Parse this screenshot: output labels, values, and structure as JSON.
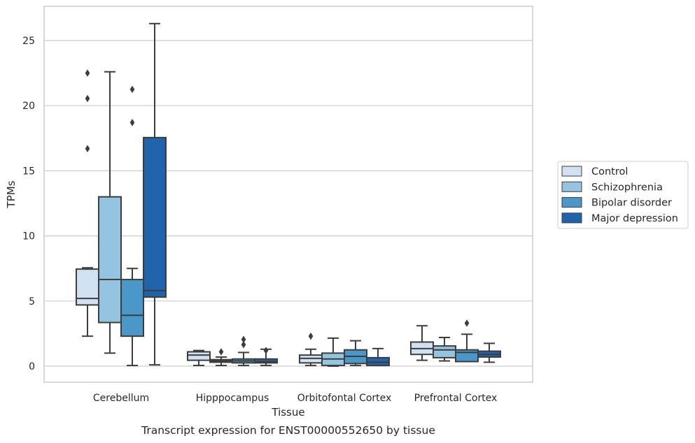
{
  "chart_data": {
    "type": "box",
    "title": "",
    "caption": "Transcript expression for ENST00000552650 by tissue",
    "xlabel": "Tissue",
    "ylabel": "TPMs",
    "ylim": [
      -1.2,
      27.2
    ],
    "yticks": [
      0,
      5,
      10,
      15,
      20,
      25
    ],
    "grid": "horizontal",
    "legend_position": "right",
    "categories": [
      "Cerebellum",
      "Hipppocampus",
      "Orbitofontal Cortex",
      "Prefrontal Cortex"
    ],
    "series": [
      {
        "name": "Control",
        "color": "#d0e1f2",
        "boxes": [
          {
            "whislo": 2.3,
            "q1": 4.7,
            "med": 5.2,
            "q3": 7.45,
            "whishi": 7.55,
            "fliers": [
              16.7,
              20.55,
              22.5
            ]
          },
          {
            "whislo": 0.05,
            "q1": 0.45,
            "med": 0.85,
            "q3": 1.1,
            "whishi": 1.2,
            "fliers": []
          },
          {
            "whislo": 0.05,
            "q1": 0.25,
            "med": 0.6,
            "q3": 0.85,
            "whishi": 1.3,
            "fliers": [
              2.3
            ]
          },
          {
            "whislo": 0.45,
            "q1": 0.9,
            "med": 1.35,
            "q3": 1.85,
            "whishi": 3.1,
            "fliers": []
          }
        ]
      },
      {
        "name": "Schizophrenia",
        "color": "#94c4df",
        "boxes": [
          {
            "whislo": 1.0,
            "q1": 3.35,
            "med": 6.65,
            "q3": 13.0,
            "whishi": 22.6,
            "fliers": []
          },
          {
            "whislo": 0.05,
            "q1": 0.3,
            "med": 0.4,
            "q3": 0.5,
            "whishi": 0.7,
            "fliers": [
              1.1
            ]
          },
          {
            "whislo": 0.0,
            "q1": 0.05,
            "med": 0.55,
            "q3": 1.0,
            "whishi": 2.15,
            "fliers": []
          },
          {
            "whislo": 0.4,
            "q1": 0.65,
            "med": 1.25,
            "q3": 1.55,
            "whishi": 2.2,
            "fliers": []
          }
        ]
      },
      {
        "name": "Bipolar disorder",
        "color": "#4a98c9",
        "boxes": [
          {
            "whislo": 0.05,
            "q1": 2.3,
            "med": 3.9,
            "q3": 6.65,
            "whishi": 7.5,
            "fliers": [
              18.7,
              21.25
            ]
          },
          {
            "whislo": 0.05,
            "q1": 0.25,
            "med": 0.4,
            "q3": 0.55,
            "whishi": 1.05,
            "fliers": [
              1.65,
              2.05
            ]
          },
          {
            "whislo": 0.05,
            "q1": 0.2,
            "med": 0.75,
            "q3": 1.25,
            "whishi": 1.95,
            "fliers": []
          },
          {
            "whislo": 0.35,
            "q1": 0.35,
            "med": 1.05,
            "q3": 1.25,
            "whishi": 2.45,
            "fliers": [
              3.3
            ]
          }
        ]
      },
      {
        "name": "Major depression",
        "color": "#2163aa",
        "boxes": [
          {
            "whislo": 0.1,
            "q1": 5.3,
            "med": 5.8,
            "q3": 17.55,
            "whishi": 26.3,
            "fliers": []
          },
          {
            "whislo": 0.05,
            "q1": 0.25,
            "med": 0.35,
            "q3": 0.55,
            "whishi": 1.3,
            "fliers": [
              1.2
            ]
          },
          {
            "whislo": 0.05,
            "q1": 0.05,
            "med": 0.3,
            "q3": 0.65,
            "whishi": 1.35,
            "fliers": []
          },
          {
            "whislo": 0.3,
            "q1": 0.7,
            "med": 0.9,
            "q3": 1.15,
            "whishi": 1.75,
            "fliers": []
          }
        ]
      }
    ]
  }
}
